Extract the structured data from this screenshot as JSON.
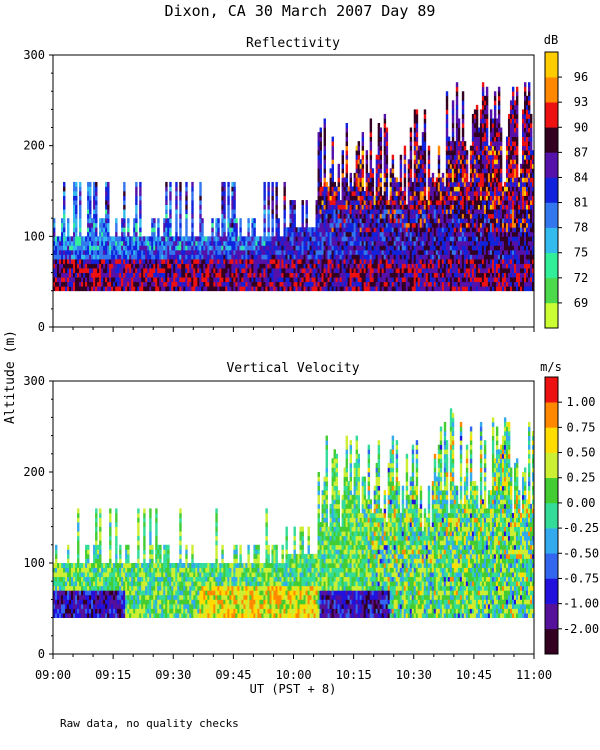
{
  "chart_data": {
    "title": "Dixon, CA 30 March 2007  Day  89",
    "ylabel": "Altitude (m)",
    "xlabel": "UT  (PST + 8)",
    "x_ticks": [
      "09:00",
      "09:15",
      "09:30",
      "09:45",
      "10:00",
      "10:15",
      "10:30",
      "10:45",
      "11:00"
    ],
    "x_range": [
      "09:00",
      "11:00"
    ],
    "ylim": [
      0,
      300
    ],
    "y_ticks": [
      "0",
      "100",
      "200",
      "300"
    ],
    "footnote": "Raw data, no quality checks",
    "panels": [
      {
        "type": "heatmap",
        "title": "Reflectivity",
        "units": "dB",
        "colorbar_labels": [
          "69",
          "72",
          "75",
          "78",
          "81",
          "84",
          "87",
          "90",
          "93",
          "96"
        ],
        "palette": [
          "#ccff33",
          "#4cd94c",
          "#33ee99",
          "#33bbee",
          "#3377ee",
          "#1122dd",
          "#5511aa",
          "#330022",
          "#ee1111",
          "#ff8800",
          "#ffcc00"
        ],
        "data_min_altitude": 40,
        "max_top_altitude": 280
      },
      {
        "type": "heatmap",
        "title": "Vertical Velocity",
        "units": "m/s",
        "colorbar_labels": [
          "-2.00",
          "-1.00",
          "-0.75",
          "-0.50",
          "-0.25",
          "0.00",
          "0.25",
          "0.50",
          "0.75",
          "1.00"
        ],
        "palette": [
          "#330022",
          "#551199",
          "#2211dd",
          "#3366ee",
          "#33aaee",
          "#33dd99",
          "#44cc33",
          "#ccee33",
          "#ffdd00",
          "#ff8800",
          "#ee1111"
        ],
        "data_min_altitude": 40,
        "max_top_altitude": 280
      }
    ]
  }
}
